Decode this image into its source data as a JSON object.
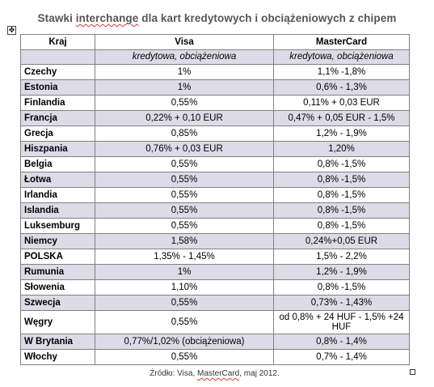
{
  "title": {
    "before": "Stawki ",
    "marked": "interchange",
    "after": " dla kart kredytowych i obciążeniowych z chipem"
  },
  "move_handle_glyph": "✥",
  "headers": {
    "country": "Kraj",
    "visa": "Visa",
    "mastercard": "MasterCard"
  },
  "subheader": {
    "visa": "kredytowa, obciążeniowa",
    "mastercard": "kredytowa, obciążeniowa"
  },
  "rows": [
    {
      "country": "Czechy",
      "visa": "1%",
      "mastercard": "1,1% -1,8%"
    },
    {
      "country": "Estonia",
      "visa": "1%",
      "mastercard": "0,6% - 1,3%"
    },
    {
      "country": "Finlandia",
      "visa": "0,55%",
      "mastercard": "0,11% + 0,03 EUR"
    },
    {
      "country": "Francja",
      "visa": "0,22% + 0,10 EUR",
      "mastercard": "0,47% + 0,05 EUR - 1,5%"
    },
    {
      "country": "Grecja",
      "visa": "0,85%",
      "mastercard": "1,2% - 1,9%"
    },
    {
      "country": "Hiszpania",
      "visa": "0,76% + 0,03 EUR",
      "mastercard": "1,20%"
    },
    {
      "country": "Belgia",
      "visa": "0,55%",
      "mastercard": "0,8% -1,5%"
    },
    {
      "country": "Łotwa",
      "visa": "0,55%",
      "mastercard": "0,8% -1,5%"
    },
    {
      "country": "Irlandia",
      "visa": "0,55%",
      "mastercard": "0,8% -1,5%"
    },
    {
      "country": "Islandia",
      "visa": "0,55%",
      "mastercard": "0,8% -1,5%"
    },
    {
      "country": "Luksemburg",
      "visa": "0,55%",
      "mastercard": "0,8% -1,5%"
    },
    {
      "country": "Niemcy",
      "visa": "1,58%",
      "mastercard": "0,24%+0,05 EUR"
    },
    {
      "country": "POLSKA",
      "visa": "1,35% - 1,45%",
      "mastercard": "1,5% - 2,2%"
    },
    {
      "country": "Rumunia",
      "visa": "1%",
      "mastercard": "1,2% - 1,9%"
    },
    {
      "country": "Słowenia",
      "visa": "1,10%",
      "mastercard": "0,8% -1,5%"
    },
    {
      "country": "Szwecja",
      "visa": "0,55%",
      "mastercard": "0,73% - 1,43%"
    },
    {
      "country": "Węgry",
      "visa": "0,55%",
      "mastercard": "od 0,8% + 24 HUF - 1,5% +24 HUF"
    },
    {
      "country": "W Brytania",
      "visa": "0,77%/1,02% (obciążeniowa)",
      "mastercard": "0,8% - 1,4%"
    },
    {
      "country": "Włochy",
      "visa": "0,55%",
      "mastercard": "0,7% - 1,4%"
    }
  ],
  "source": {
    "before": "Źródło: Visa, ",
    "marked": "MasterCard",
    "after": ", maj 2012."
  }
}
